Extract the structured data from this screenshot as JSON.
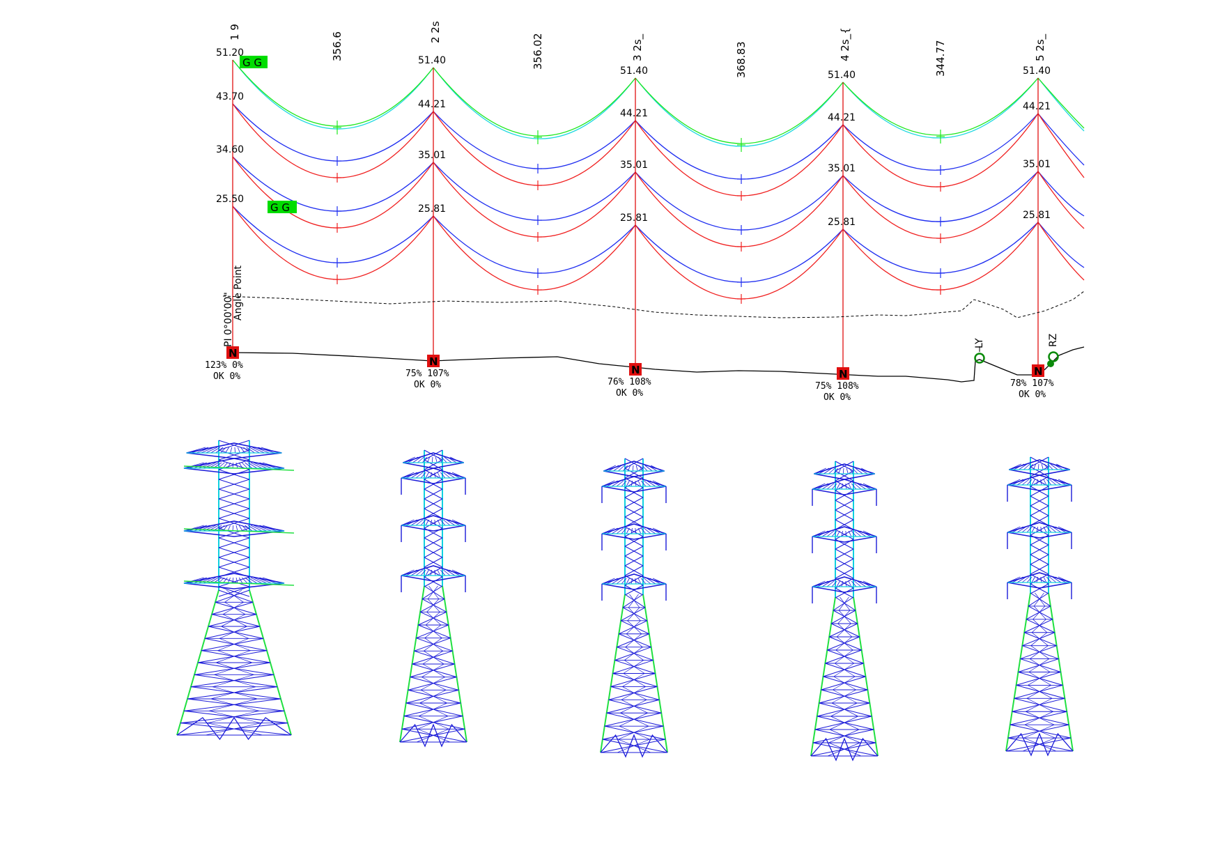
{
  "colors": {
    "conductor_blue": "#1f2ef0",
    "conductor_red": "#f02020",
    "groundwire_green": "#1ee81e",
    "groundwire_cyan": "#1ed8e0",
    "pole_red": "#e01010",
    "tower_badge": "#e01010",
    "ground_profile": "#000000",
    "flag_green": "#00dd00",
    "lattice_blue": "#1a1ad8",
    "lattice_cyan": "#10d0e0",
    "lattice_green": "#20e040",
    "marker_green": "#0a8a0a"
  },
  "profile": {
    "towers": [
      {
        "id": "1 9",
        "attach": [
          "51.20",
          "43.70",
          "34.60",
          "25.50"
        ],
        "badge": "N",
        "usage": "123%  0%",
        "status": "OK  0%"
      },
      {
        "id": "2 2s",
        "attach": [
          "51.40",
          "44.21",
          "35.01",
          "25.81"
        ],
        "badge": "N",
        "usage": "75%  107%",
        "status": "OK  0%"
      },
      {
        "id": "3 2s_",
        "attach": [
          "51.40",
          "44.21",
          "35.01",
          "25.81"
        ],
        "badge": "N",
        "usage": "76%  108%",
        "status": "OK  0%"
      },
      {
        "id": "4 2s_{",
        "attach": [
          "51.40",
          "44.21",
          "35.01",
          "25.81"
        ],
        "badge": "N",
        "usage": "75%  108%",
        "status": "OK  0%"
      },
      {
        "id": "5 2s_",
        "attach": [
          "51.40",
          "44.21",
          "35.01",
          "25.81"
        ],
        "badge": "N",
        "usage": "78%  107%",
        "status": "OK  0%"
      }
    ],
    "spans": [
      "356.6",
      "356.02",
      "368.83",
      "344.77"
    ],
    "flag_label": "G G",
    "angle_label_1": "PI 0°00'00\"",
    "angle_label_2": "Angle Point",
    "marker_ly": "LY",
    "marker_rz": "RZ"
  },
  "lattice_towers": [
    {
      "name": "tower-1"
    },
    {
      "name": "tower-2"
    },
    {
      "name": "tower-3"
    },
    {
      "name": "tower-4"
    },
    {
      "name": "tower-5"
    }
  ]
}
